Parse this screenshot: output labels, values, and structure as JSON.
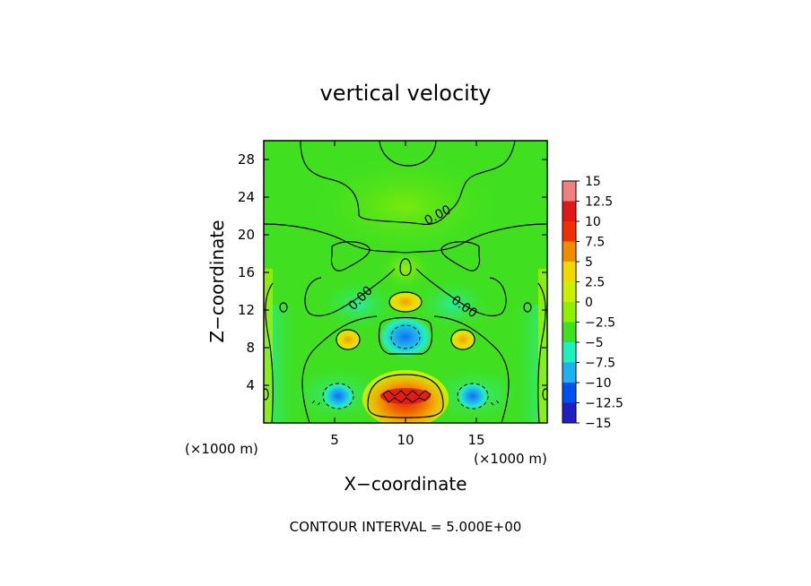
{
  "chart_data": {
    "type": "heatmap",
    "title": "vertical velocity",
    "xlabel": "X−coordinate",
    "ylabel": "Z−coordinate",
    "x_units_left": "(×1000 m)",
    "x_units_right": "(×1000 m)",
    "x_range": [
      0,
      20
    ],
    "y_range": [
      0,
      30
    ],
    "x_ticks": [
      5,
      10,
      15
    ],
    "x_tick_labels": [
      "5",
      "10",
      "15"
    ],
    "y_ticks": [
      4,
      8,
      12,
      16,
      20,
      24,
      28
    ],
    "y_tick_labels": [
      "4",
      "8",
      "12",
      "16",
      "20",
      "24",
      "28"
    ],
    "footer": "CONTOUR INTERVAL = 5.000E+00",
    "contour_labels": [
      "0.00",
      "0.00",
      "0.00"
    ],
    "colorbar": {
      "levels": [
        15,
        12.5,
        10,
        7.5,
        5,
        2.5,
        0,
        -2.5,
        -5,
        -7.5,
        -10,
        -12.5,
        -15
      ],
      "labels": [
        "15",
        "12.5",
        "10",
        "7.5",
        "5",
        "2.5",
        "0",
        "−2.5",
        "−5",
        "−7.5",
        "−10",
        "−12.5",
        "−15"
      ],
      "colors": [
        "#f08080",
        "#e01818",
        "#f03000",
        "#f08c00",
        "#f0d800",
        "#c8f000",
        "#8cf000",
        "#40e020",
        "#20f0c0",
        "#20b0f0",
        "#0050f0",
        "#2020c0",
        "#6000a0"
      ]
    },
    "features": [
      {
        "kind": "max",
        "x": 10,
        "z": 2.8,
        "value": 12
      },
      {
        "kind": "max",
        "x": 10,
        "z": 12.8,
        "value": 6
      },
      {
        "kind": "max",
        "x": 5.5,
        "z": 9.3,
        "value": 6
      },
      {
        "kind": "max",
        "x": 14.5,
        "z": 9.3,
        "value": 6
      },
      {
        "kind": "min",
        "x": 10,
        "z": 9.4,
        "value": -9
      },
      {
        "kind": "min",
        "x": 5.3,
        "z": 2.8,
        "value": -8.5
      },
      {
        "kind": "min",
        "x": 14.7,
        "z": 2.8,
        "value": -8.5
      }
    ]
  }
}
